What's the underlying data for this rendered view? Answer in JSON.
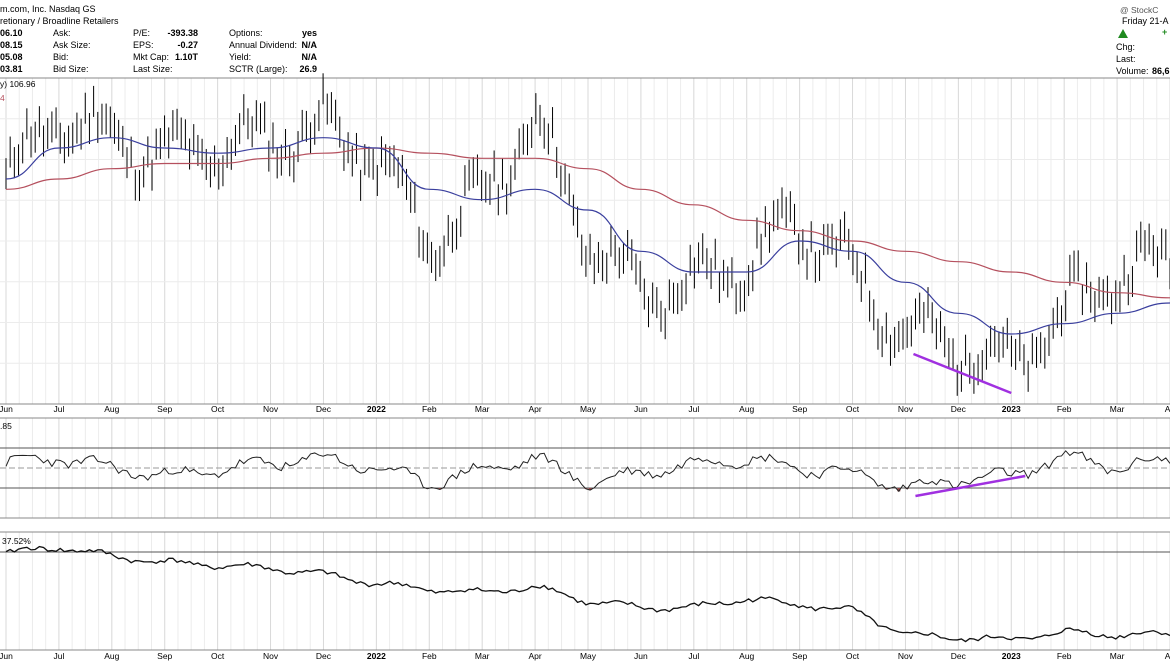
{
  "header": {
    "company": "m.com, Inc.  Nasdaq GS",
    "sector": "retionary / Broadline Retailers",
    "watermark": "@ StockC",
    "date": "Friday  21-A",
    "left_values": [
      "06.10",
      "08.15",
      "05.08",
      "03.81"
    ],
    "col1_labels": [
      "Ask:",
      "Ask Size:",
      "Bid:",
      "Bid Size:"
    ],
    "col2_labels": [
      "P/E:",
      "EPS:",
      "Mkt Cap:",
      "Last Size:"
    ],
    "col2_values": [
      "-393.38",
      "-0.27",
      "1.10T",
      ""
    ],
    "col3_labels": [
      "Options:",
      "Annual Dividend:",
      "Yield:",
      "SCTR (Large):"
    ],
    "col3_values": [
      "yes",
      "N/A",
      "N/A",
      "26.9"
    ],
    "right_labels": [
      "Chg:",
      "Last:",
      "Volume:"
    ],
    "volume_value": "86,6",
    "plus": "+",
    "ma_label": "y) 106.96",
    "ma_label_color_mark": "4",
    "panel2_label": ".85",
    "panel3_label": "37.52%"
  },
  "colors": {
    "price_bars": "#000000",
    "ma_short": "#3a3f9e",
    "ma_long": "#b5505e",
    "divergence": "#a030e0",
    "oversold_fill": "#9a4a4a",
    "overbought_fill": "#3a8a3a",
    "grid": "#d8d8d8"
  },
  "chart_data": [
    {
      "type": "line",
      "panel": "price",
      "x_labels": [
        "Jun",
        "Jul",
        "Aug",
        "Sep",
        "Oct",
        "Nov",
        "Dec",
        "2022",
        "Feb",
        "Mar",
        "Apr",
        "May",
        "Jun",
        "Jul",
        "Aug",
        "Sep",
        "Oct",
        "Nov",
        "Dec",
        "2023",
        "Feb",
        "Mar",
        "Ap"
      ],
      "series": [
        {
          "role": "price",
          "values": [
            108,
            120,
            116,
            112,
            114,
            116,
            118,
            112,
            96,
            104,
            120,
            96,
            86,
            88,
            92,
            100,
            90,
            78,
            76,
            72,
            82,
            90,
            92
          ]
        },
        {
          "role": "ma_short",
          "values": [
            108,
            114,
            116,
            114,
            113,
            114,
            116,
            114,
            106,
            104,
            106,
            102,
            94,
            90,
            90,
            96,
            94,
            88,
            82,
            78,
            80,
            82,
            84
          ]
        },
        {
          "role": "ma_long",
          "values": [
            106,
            108,
            110,
            111,
            111,
            112,
            113,
            114,
            113,
            112,
            112,
            110,
            106,
            103,
            100,
            98,
            96,
            94,
            92,
            90,
            88,
            86,
            85
          ]
        }
      ]
    },
    {
      "type": "line",
      "panel": "oscillator",
      "series": [
        {
          "role": "oscillator",
          "values": [
            55,
            60,
            50,
            42,
            48,
            55,
            60,
            50,
            35,
            48,
            60,
            35,
            45,
            55,
            60,
            50,
            45,
            30,
            38,
            42,
            62,
            50,
            58
          ]
        }
      ]
    },
    {
      "type": "line",
      "panel": "relative",
      "series": [
        {
          "role": "relative",
          "values": [
            60,
            64,
            58,
            54,
            52,
            50,
            46,
            40,
            36,
            34,
            38,
            28,
            24,
            24,
            30,
            26,
            22,
            6,
            4,
            3,
            8,
            6,
            7
          ]
        }
      ]
    }
  ]
}
